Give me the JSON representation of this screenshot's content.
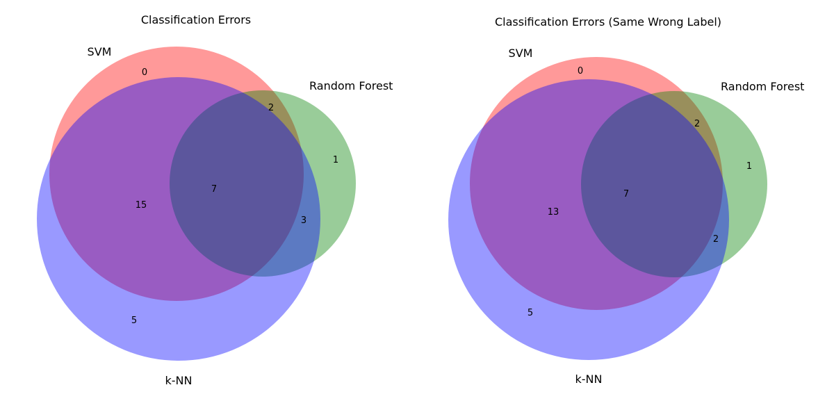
{
  "chart_data": [
    {
      "type": "venn",
      "title": "Classification Errors",
      "sets": [
        {
          "name": "SVM",
          "color": "#ff0000"
        },
        {
          "name": "Random Forest",
          "color": "#008000"
        },
        {
          "name": "k-NN",
          "color": "#0000ff"
        }
      ],
      "regions": [
        {
          "sets": [
            "SVM"
          ],
          "value": 0
        },
        {
          "sets": [
            "SVM",
            "Random Forest"
          ],
          "value": 2
        },
        {
          "sets": [
            "Random Forest"
          ],
          "value": 1
        },
        {
          "sets": [
            "SVM",
            "Random Forest",
            "k-NN"
          ],
          "value": 7
        },
        {
          "sets": [
            "SVM",
            "k-NN"
          ],
          "value": 15
        },
        {
          "sets": [
            "Random Forest",
            "k-NN"
          ],
          "value": 3
        },
        {
          "sets": [
            "k-NN"
          ],
          "value": 5
        }
      ]
    },
    {
      "type": "venn",
      "title": "Classification Errors (Same Wrong Label)",
      "sets": [
        {
          "name": "SVM",
          "color": "#ff0000"
        },
        {
          "name": "Random Forest",
          "color": "#008000"
        },
        {
          "name": "k-NN",
          "color": "#0000ff"
        }
      ],
      "regions": [
        {
          "sets": [
            "SVM"
          ],
          "value": 0
        },
        {
          "sets": [
            "SVM",
            "Random Forest"
          ],
          "value": 2
        },
        {
          "sets": [
            "Random Forest"
          ],
          "value": 1
        },
        {
          "sets": [
            "SVM",
            "Random Forest",
            "k-NN"
          ],
          "value": 7
        },
        {
          "sets": [
            "SVM",
            "k-NN"
          ],
          "value": 13
        },
        {
          "sets": [
            "Random Forest",
            "k-NN"
          ],
          "value": 2
        },
        {
          "sets": [
            "k-NN"
          ],
          "value": 5
        }
      ]
    }
  ]
}
